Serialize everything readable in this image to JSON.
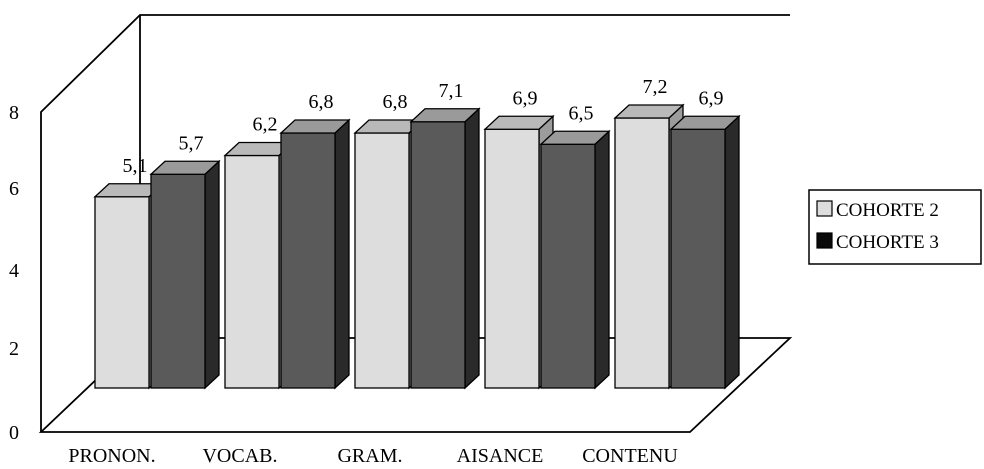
{
  "chart_data": {
    "type": "bar",
    "categories": [
      "PRONON.",
      "VOCAB.",
      "GRAM.",
      "AISANCE",
      "CONTENU"
    ],
    "series": [
      {
        "name": "COHORTE 2",
        "values": [
          5.1,
          6.2,
          6.8,
          6.9,
          7.2
        ],
        "labels": [
          "5,1",
          "6,2",
          "6,8",
          "6,9",
          "7,2"
        ],
        "color": "#dddddd"
      },
      {
        "name": "COHORTE 3",
        "values": [
          5.7,
          6.8,
          7.1,
          6.5,
          6.9
        ],
        "labels": [
          "5,7",
          "6,8",
          "7,1",
          "6,5",
          "6,9"
        ],
        "color": "#0a0a0a"
      }
    ],
    "yticks": [
      "0",
      "2",
      "4",
      "6",
      "8"
    ],
    "ylim": [
      0,
      8
    ],
    "grid": false,
    "legend": "right",
    "style": "3d-clustered-columns"
  }
}
